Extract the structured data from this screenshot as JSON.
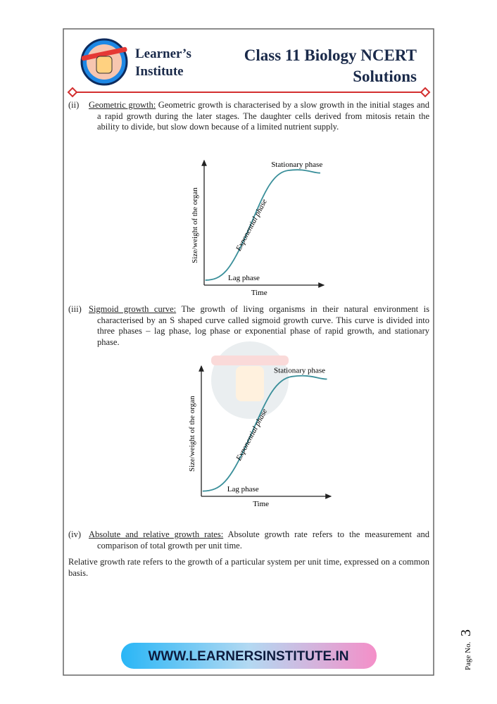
{
  "header": {
    "brand": [
      "Learner’s",
      "Institute"
    ],
    "title": [
      "Class 11 Biology NCERT",
      "Solutions"
    ]
  },
  "sections": [
    {
      "number": "(ii)",
      "heading": "Geometric growth:",
      "text": "Geometric growth is characterised by a slow growth in the initial stages and a rapid growth during the later stages. The daughter cells derived from mitosis retain the ability to divide, but slow down because of a limited nutrient supply."
    },
    {
      "number": "(iii)",
      "heading": "Sigmoid growth curve:",
      "text": "The growth of living organisms in their natural environment is characterised by an S shaped curve called sigmoid growth curve. This curve is divided into three phases – lag phase, log phase or exponential phase of rapid growth, and stationary phase."
    },
    {
      "number": "(iv)",
      "heading": "Absolute and relative growth rates:",
      "text": "Absolute growth rate refers to the measurement and comparison of total growth per unit time."
    }
  ],
  "paragraph": "Relative growth rate refers to the growth of a particular system per unit time, expressed on a common basis.",
  "figures": [
    {
      "x_label": "Time",
      "y_label": "Size/weight of the organ",
      "labels": [
        "Stationary phase",
        "Exponential phase",
        "Lag phase"
      ]
    },
    {
      "x_label": "Time",
      "y_label": "Size/weight of the organ",
      "labels": [
        "Stationary phase",
        "Exponential phase",
        "Lag phase"
      ]
    }
  ],
  "footer": {
    "url": "WWW.LEARNERSINSTITUTE.IN",
    "page_label": "Page No.",
    "page_number": "3"
  }
}
